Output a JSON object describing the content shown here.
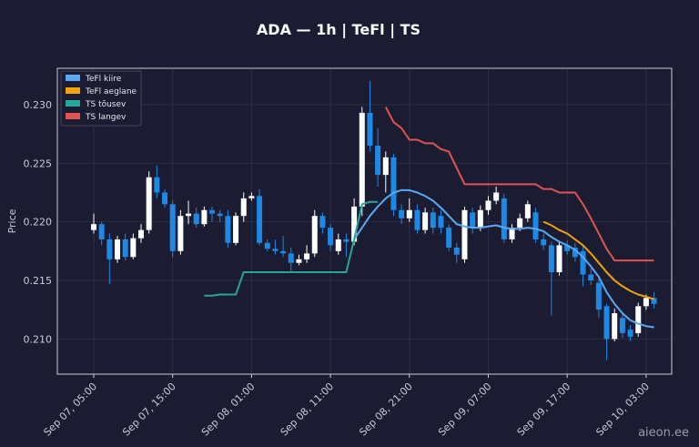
{
  "chart_data": {
    "type": "candlestick",
    "title": "ADA — 1h  |  TeFl  |  TS",
    "ylabel": "Price",
    "watermark": "aieon.ee",
    "up_color": "#ffffff",
    "down_color": "#1e88e5",
    "grid": true,
    "ylim": [
      0.207,
      0.2331
    ],
    "yticks": [
      {
        "value": 0.21,
        "label": "0.210"
      },
      0.215,
      {
        "value": 0.22,
        "label": "0.220"
      },
      0.225,
      {
        "value": 0.23,
        "label": "0.230"
      }
    ],
    "x": [
      "Sep 07, 05:00",
      "Sep 07, 06:00",
      "Sep 07, 07:00",
      "Sep 07, 08:00",
      "Sep 07, 09:00",
      "Sep 07, 10:00",
      "Sep 07, 11:00",
      "Sep 07, 12:00",
      "Sep 07, 13:00",
      "Sep 07, 14:00",
      "Sep 07, 15:00",
      "Sep 07, 16:00",
      "Sep 07, 17:00",
      "Sep 07, 18:00",
      "Sep 07, 19:00",
      "Sep 07, 20:00",
      "Sep 07, 21:00",
      "Sep 07, 22:00",
      "Sep 07, 23:00",
      "Sep 08, 00:00",
      "Sep 08, 01:00",
      "Sep 08, 02:00",
      "Sep 08, 03:00",
      "Sep 08, 04:00",
      "Sep 08, 05:00",
      "Sep 08, 06:00",
      "Sep 08, 07:00",
      "Sep 08, 08:00",
      "Sep 08, 09:00",
      "Sep 08, 10:00",
      "Sep 08, 11:00",
      "Sep 08, 12:00",
      "Sep 08, 13:00",
      "Sep 08, 14:00",
      "Sep 08, 15:00",
      "Sep 08, 16:00",
      "Sep 08, 17:00",
      "Sep 08, 18:00",
      "Sep 08, 19:00",
      "Sep 08, 20:00",
      "Sep 08, 21:00",
      "Sep 08, 22:00",
      "Sep 08, 23:00",
      "Sep 09, 00:00",
      "Sep 09, 01:00",
      "Sep 09, 02:00",
      "Sep 09, 03:00",
      "Sep 09, 04:00",
      "Sep 09, 05:00",
      "Sep 09, 06:00",
      "Sep 09, 07:00",
      "Sep 09, 08:00",
      "Sep 09, 09:00",
      "Sep 09, 10:00",
      "Sep 09, 11:00",
      "Sep 09, 12:00",
      "Sep 09, 13:00",
      "Sep 09, 14:00",
      "Sep 09, 15:00",
      "Sep 09, 16:00",
      "Sep 09, 17:00",
      "Sep 09, 18:00",
      "Sep 09, 19:00",
      "Sep 09, 20:00",
      "Sep 09, 21:00",
      "Sep 09, 22:00",
      "Sep 09, 23:00",
      "Sep 10, 00:00",
      "Sep 10, 01:00",
      "Sep 10, 02:00",
      "Sep 10, 03:00",
      "Sep 10, 04:00"
    ],
    "xticks": [
      "Sep 07, 05:00",
      "Sep 07, 15:00",
      "Sep 08, 01:00",
      "Sep 08, 11:00",
      "Sep 08, 21:00",
      "Sep 09, 07:00",
      "Sep 09, 17:00",
      "Sep 10, 03:00"
    ],
    "open": [
      0.2193,
      0.2198,
      0.2185,
      0.2168,
      0.2185,
      0.217,
      0.2186,
      0.2193,
      0.2238,
      0.2225,
      0.2215,
      0.2175,
      0.2205,
      0.2207,
      0.2198,
      0.221,
      0.2207,
      0.2205,
      0.2182,
      0.2205,
      0.222,
      0.2222,
      0.2182,
      0.2177,
      0.2175,
      0.2173,
      0.2165,
      0.2168,
      0.2173,
      0.2205,
      0.2195,
      0.2175,
      0.2185,
      0.2183,
      0.2213,
      0.2293,
      0.2265,
      0.224,
      0.2255,
      0.221,
      0.2203,
      0.221,
      0.2193,
      0.2208,
      0.2205,
      0.2195,
      0.2178,
      0.2168,
      0.2208,
      0.2195,
      0.221,
      0.2218,
      0.222,
      0.2185,
      0.2195,
      0.2203,
      0.2208,
      0.2185,
      0.218,
      0.2157,
      0.218,
      0.2178,
      0.2175,
      0.2155,
      0.2148,
      0.2128,
      0.21,
      0.2118,
      0.2108,
      0.2105,
      0.2128,
      0.2135
    ],
    "high": [
      0.2207,
      0.22,
      0.219,
      0.2188,
      0.219,
      0.219,
      0.2198,
      0.2243,
      0.2248,
      0.2228,
      0.2218,
      0.221,
      0.2218,
      0.2212,
      0.2213,
      0.2213,
      0.221,
      0.221,
      0.2208,
      0.2225,
      0.2225,
      0.2228,
      0.2185,
      0.2185,
      0.2188,
      0.2178,
      0.2172,
      0.218,
      0.221,
      0.2208,
      0.2198,
      0.219,
      0.219,
      0.222,
      0.2298,
      0.232,
      0.228,
      0.226,
      0.2258,
      0.2215,
      0.222,
      0.2215,
      0.2212,
      0.2212,
      0.221,
      0.2198,
      0.2182,
      0.2213,
      0.2212,
      0.2214,
      0.2222,
      0.223,
      0.2224,
      0.2198,
      0.2207,
      0.2218,
      0.2212,
      0.219,
      0.2183,
      0.2184,
      0.2184,
      0.2182,
      0.218,
      0.216,
      0.2152,
      0.213,
      0.2126,
      0.2122,
      0.2112,
      0.2131,
      0.2138,
      0.214
    ],
    "low": [
      0.219,
      0.218,
      0.2147,
      0.2165,
      0.2167,
      0.2168,
      0.2182,
      0.219,
      0.222,
      0.2212,
      0.217,
      0.2172,
      0.2198,
      0.2195,
      0.2196,
      0.22,
      0.22,
      0.2178,
      0.218,
      0.22,
      0.2218,
      0.218,
      0.2175,
      0.2172,
      0.217,
      0.2158,
      0.2163,
      0.2165,
      0.217,
      0.219,
      0.2175,
      0.2172,
      0.217,
      0.218,
      0.2205,
      0.226,
      0.223,
      0.2225,
      0.2205,
      0.2198,
      0.22,
      0.219,
      0.219,
      0.219,
      0.219,
      0.2175,
      0.2165,
      0.2165,
      0.219,
      0.2192,
      0.2206,
      0.2215,
      0.2182,
      0.2182,
      0.2192,
      0.22,
      0.2182,
      0.2176,
      0.212,
      0.2154,
      0.2172,
      0.2166,
      0.2145,
      0.2146,
      0.2118,
      0.2082,
      0.2098,
      0.2101,
      0.2098,
      0.2102,
      0.2125,
      0.2126
    ],
    "close": [
      0.2198,
      0.2185,
      0.2168,
      0.2185,
      0.217,
      0.2186,
      0.2193,
      0.2238,
      0.2225,
      0.2215,
      0.2175,
      0.2205,
      0.2207,
      0.2198,
      0.221,
      0.2207,
      0.2205,
      0.2182,
      0.2205,
      0.222,
      0.2222,
      0.2182,
      0.2177,
      0.2175,
      0.2173,
      0.2165,
      0.2168,
      0.2173,
      0.2205,
      0.2195,
      0.218,
      0.2185,
      0.2183,
      0.2213,
      0.2293,
      0.2265,
      0.224,
      0.2255,
      0.221,
      0.2203,
      0.221,
      0.2193,
      0.2208,
      0.2195,
      0.2195,
      0.2178,
      0.2172,
      0.221,
      0.2195,
      0.221,
      0.2218,
      0.2225,
      0.2185,
      0.2195,
      0.2203,
      0.2215,
      0.2185,
      0.218,
      0.2157,
      0.218,
      0.2175,
      0.217,
      0.2155,
      0.215,
      0.2125,
      0.21,
      0.2122,
      0.2105,
      0.2102,
      0.2128,
      0.2135,
      0.213
    ],
    "series": [
      {
        "name": "TeFl kiire",
        "color": "#5aa9f5",
        "values": [
          null,
          null,
          null,
          null,
          null,
          null,
          null,
          null,
          null,
          null,
          null,
          null,
          null,
          null,
          null,
          null,
          null,
          null,
          null,
          null,
          null,
          null,
          null,
          null,
          null,
          null,
          null,
          null,
          null,
          null,
          null,
          null,
          null,
          0.2185,
          0.2195,
          0.2205,
          0.2213,
          0.222,
          0.2225,
          0.2227,
          0.2227,
          0.2225,
          0.2222,
          0.2218,
          0.2212,
          0.2205,
          0.2198,
          0.2196,
          0.2195,
          0.2195,
          0.2196,
          0.2197,
          0.2195,
          0.2194,
          0.2194,
          0.2195,
          0.2194,
          0.2192,
          0.2187,
          0.2183,
          0.218,
          0.2176,
          0.217,
          0.2162,
          0.2153,
          0.214,
          0.213,
          0.2122,
          0.2116,
          0.2113,
          0.2111,
          0.211
        ]
      },
      {
        "name": "TeFl aeglane",
        "color": "#f0a30a",
        "values": [
          null,
          null,
          null,
          null,
          null,
          null,
          null,
          null,
          null,
          null,
          null,
          null,
          null,
          null,
          null,
          null,
          null,
          null,
          null,
          null,
          null,
          null,
          null,
          null,
          null,
          null,
          null,
          null,
          null,
          null,
          null,
          null,
          null,
          null,
          null,
          null,
          null,
          null,
          null,
          null,
          null,
          null,
          null,
          null,
          null,
          null,
          null,
          null,
          null,
          null,
          null,
          null,
          null,
          null,
          null,
          null,
          null,
          0.22,
          0.2197,
          0.2193,
          0.219,
          0.2185,
          0.218,
          0.2173,
          0.2165,
          0.2157,
          0.215,
          0.2145,
          0.2141,
          0.2138,
          0.2136,
          0.2134
        ]
      },
      {
        "name": "TS tõusev",
        "color": "#26a69a",
        "values": [
          null,
          null,
          null,
          null,
          null,
          null,
          null,
          null,
          null,
          null,
          null,
          null,
          null,
          null,
          0.2137,
          0.2137,
          0.2138,
          0.2138,
          0.2138,
          0.2157,
          0.2157,
          0.2157,
          0.2157,
          0.2157,
          0.2157,
          0.2157,
          0.2157,
          0.2157,
          0.2157,
          0.2157,
          0.2157,
          0.2157,
          0.2157,
          0.2185,
          0.2215,
          0.2217,
          0.2217,
          null,
          null,
          null,
          null,
          null,
          null,
          null,
          null,
          null,
          null,
          null,
          null,
          null,
          null,
          null,
          null,
          null,
          null,
          null,
          null,
          null,
          null,
          null,
          null,
          null,
          null,
          null,
          null,
          null,
          null,
          null,
          null,
          null,
          null,
          null
        ]
      },
      {
        "name": "TS langev",
        "color": "#e05353",
        "values": [
          null,
          null,
          null,
          null,
          null,
          null,
          null,
          null,
          null,
          null,
          null,
          null,
          null,
          null,
          null,
          null,
          null,
          null,
          null,
          null,
          null,
          null,
          null,
          null,
          null,
          null,
          null,
          null,
          null,
          null,
          null,
          null,
          null,
          null,
          null,
          null,
          null,
          0.2298,
          0.2285,
          0.228,
          0.227,
          0.227,
          0.2267,
          0.2267,
          0.2262,
          0.226,
          0.2246,
          0.2232,
          0.2232,
          0.2232,
          0.2232,
          0.2232,
          0.2232,
          0.2232,
          0.2232,
          0.2232,
          0.2232,
          0.2228,
          0.2228,
          0.2225,
          0.2225,
          0.2225,
          0.2215,
          0.2203,
          0.219,
          0.2177,
          0.2167,
          0.2167,
          0.2167,
          0.2167,
          0.2167,
          0.2167
        ]
      }
    ]
  }
}
